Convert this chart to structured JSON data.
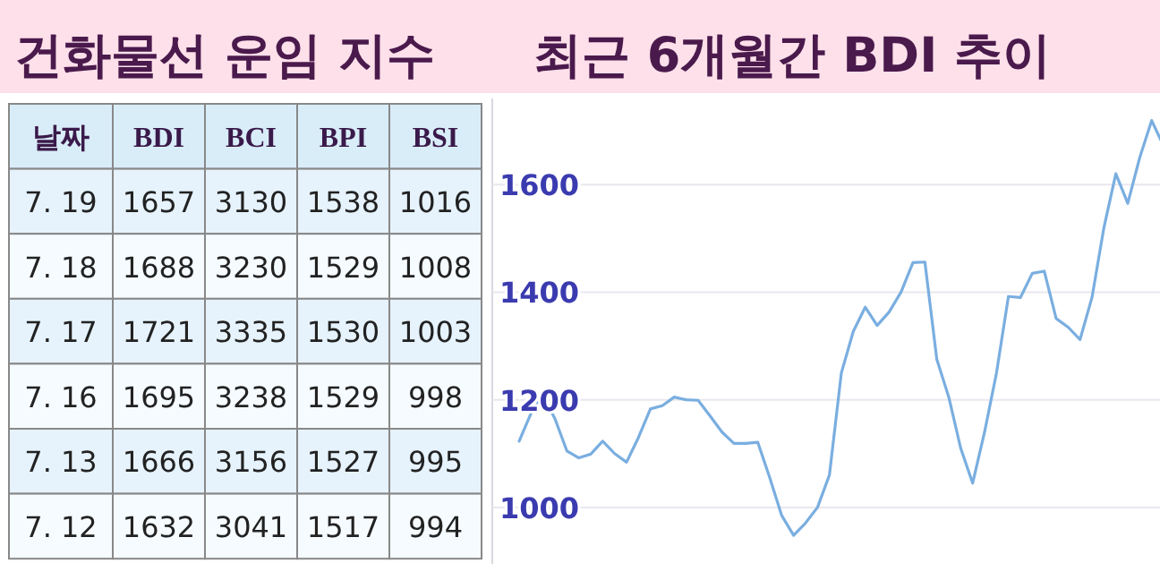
{
  "chart_data": [
    {
      "type": "heatmap",
      "title": "건화물선 운임 지수",
      "ylabel": "날짜",
      "categories": [
        "BDI",
        "BCI",
        "BPI",
        "BSI"
      ],
      "y_categories": [
        "7. 19",
        "7. 18",
        "7. 17",
        "7. 16",
        "7. 13",
        "7. 12"
      ],
      "cells": [
        [
          1657,
          3130,
          1538,
          1016
        ],
        [
          1688,
          3230,
          1529,
          1008
        ],
        [
          1721,
          3335,
          1530,
          1003
        ],
        [
          1695,
          3238,
          1529,
          998
        ],
        [
          1666,
          3156,
          1527,
          995
        ],
        [
          1632,
          3041,
          1517,
          994
        ]
      ],
      "colors": [
        "#e6f3fc",
        "#f5fbff"
      ],
      "data_labels": true
    },
    {
      "type": "line",
      "title": "최근 6개월간 BDI 추이",
      "categories": [
        null,
        null,
        null,
        null,
        null,
        null,
        null,
        null,
        null,
        null,
        null,
        null,
        null,
        null,
        null,
        null,
        null,
        null,
        null,
        null,
        null,
        null,
        null,
        null,
        null,
        null,
        null,
        null,
        null,
        null,
        null,
        null,
        null,
        null,
        null,
        null,
        null,
        null,
        null,
        null,
        null,
        null,
        null,
        null,
        null,
        null,
        null,
        null,
        null,
        null,
        null,
        null,
        null,
        null,
        null
      ],
      "series": [
        {
          "color": "#7aaee0",
          "values": [
            1123,
            1175,
            1208,
            1165,
            1105,
            1092,
            1099,
            1123,
            1100,
            1084,
            1130,
            1183,
            1189,
            1205,
            1200,
            1199,
            1170,
            1140,
            1119,
            1119,
            1121,
            1055,
            985,
            948,
            971,
            1000,
            1060,
            1250,
            1327,
            1372,
            1338,
            1363,
            1400,
            1455,
            1456,
            1275,
            1205,
            1110,
            1045,
            1140,
            1250,
            1392,
            1390,
            1435,
            1439,
            1351,
            1335,
            1312,
            1390,
            1520,
            1620,
            1565,
            1650,
            1719,
            1672
          ]
        }
      ],
      "ylim": [
        895,
        1760
      ],
      "yticks": [
        1000,
        1200,
        1400,
        1600
      ],
      "grid": "y",
      "tick_labels": "y",
      "marker": "none",
      "line_style": "solid"
    }
  ]
}
